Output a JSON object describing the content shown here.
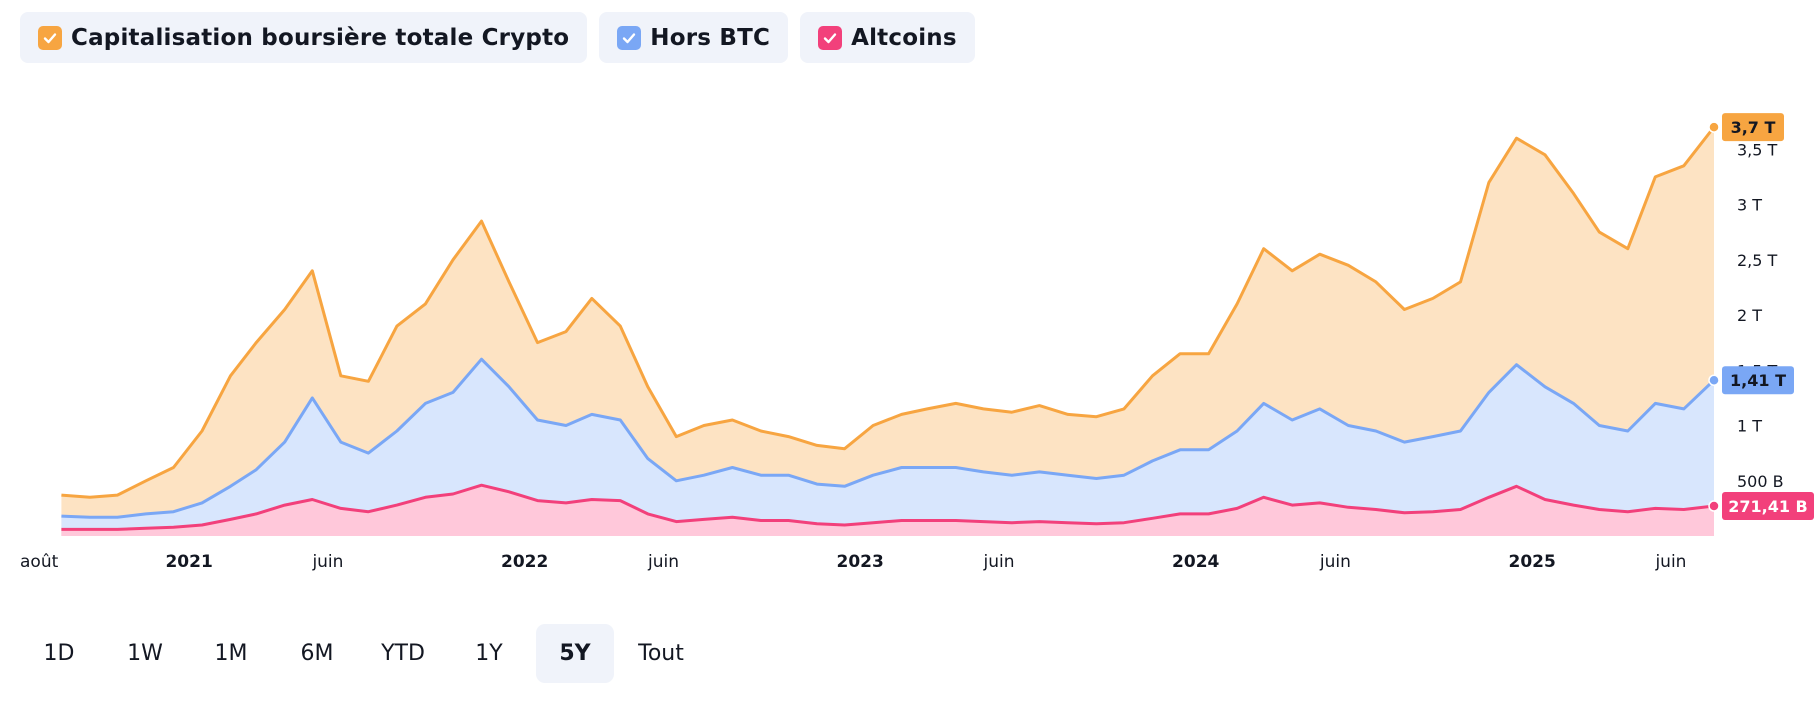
{
  "legend": [
    {
      "label": "Capitalisation boursière totale Crypto",
      "color": "#f7a541"
    },
    {
      "label": "Hors BTC",
      "color": "#7aa7f5"
    },
    {
      "label": "Altcoins",
      "color": "#f2407b"
    }
  ],
  "ranges": {
    "items": [
      "1D",
      "1W",
      "1M",
      "6M",
      "YTD",
      "1Y",
      "5Y",
      "Tout"
    ],
    "active": "5Y"
  },
  "chart_data": {
    "type": "area",
    "x_axis_labels": [
      {
        "label": "août",
        "date": "2020-08",
        "bold": false
      },
      {
        "label": "2021",
        "date": "2021-01",
        "bold": true
      },
      {
        "label": "juin",
        "date": "2021-06",
        "bold": false
      },
      {
        "label": "2022",
        "date": "2022-01",
        "bold": true
      },
      {
        "label": "juin",
        "date": "2022-06",
        "bold": false
      },
      {
        "label": "2023",
        "date": "2023-01",
        "bold": true
      },
      {
        "label": "juin",
        "date": "2023-06",
        "bold": false
      },
      {
        "label": "2024",
        "date": "2024-01",
        "bold": true
      },
      {
        "label": "juin",
        "date": "2024-06",
        "bold": false
      },
      {
        "label": "2025",
        "date": "2025-01",
        "bold": true
      },
      {
        "label": "juin",
        "date": "2025-06",
        "bold": false
      }
    ],
    "y_axis_ticks": [
      {
        "label": "500 B",
        "value": 0.5
      },
      {
        "label": "1 T",
        "value": 1
      },
      {
        "label": "1,5 T",
        "value": 1.5
      },
      {
        "label": "2 T",
        "value": 2
      },
      {
        "label": "2,5 T",
        "value": 2.5
      },
      {
        "label": "3 T",
        "value": 3
      },
      {
        "label": "3,5 T",
        "value": 3.5
      }
    ],
    "y_unit": "T",
    "ylim": [
      0,
      3.85
    ],
    "grid": false,
    "legend_position": "top-left",
    "series": [
      {
        "name": "Capitalisation boursière totale Crypto",
        "color": "#f7a541",
        "fill": "#fde3c3",
        "last_label": "3,7 T",
        "last_value": 3.7,
        "points": [
          [
            "2020-08",
            0.37
          ],
          [
            "2020-09",
            0.35
          ],
          [
            "2020-10",
            0.37
          ],
          [
            "2020-11",
            0.5
          ],
          [
            "2020-12",
            0.62
          ],
          [
            "2021-01",
            0.95
          ],
          [
            "2021-02",
            1.45
          ],
          [
            "2021-03",
            1.75
          ],
          [
            "2021-04",
            2.05
          ],
          [
            "2021-05",
            2.4
          ],
          [
            "2021-06",
            1.45
          ],
          [
            "2021-07",
            1.4
          ],
          [
            "2021-08",
            1.9
          ],
          [
            "2021-09",
            2.1
          ],
          [
            "2021-10",
            2.5
          ],
          [
            "2021-11",
            2.85
          ],
          [
            "2021-12",
            2.3
          ],
          [
            "2022-01",
            1.75
          ],
          [
            "2022-02",
            1.85
          ],
          [
            "2022-03",
            2.15
          ],
          [
            "2022-04",
            1.9
          ],
          [
            "2022-05",
            1.35
          ],
          [
            "2022-06",
            0.9
          ],
          [
            "2022-07",
            1.0
          ],
          [
            "2022-08",
            1.05
          ],
          [
            "2022-09",
            0.95
          ],
          [
            "2022-10",
            0.9
          ],
          [
            "2022-11",
            0.82
          ],
          [
            "2022-12",
            0.79
          ],
          [
            "2023-01",
            1.0
          ],
          [
            "2023-02",
            1.1
          ],
          [
            "2023-03",
            1.15
          ],
          [
            "2023-04",
            1.2
          ],
          [
            "2023-05",
            1.15
          ],
          [
            "2023-06",
            1.12
          ],
          [
            "2023-07",
            1.18
          ],
          [
            "2023-08",
            1.1
          ],
          [
            "2023-09",
            1.08
          ],
          [
            "2023-10",
            1.15
          ],
          [
            "2023-11",
            1.45
          ],
          [
            "2023-12",
            1.65
          ],
          [
            "2024-01",
            1.65
          ],
          [
            "2024-02",
            2.1
          ],
          [
            "2024-03",
            2.6
          ],
          [
            "2024-04",
            2.4
          ],
          [
            "2024-05",
            2.55
          ],
          [
            "2024-06",
            2.45
          ],
          [
            "2024-07",
            2.3
          ],
          [
            "2024-08",
            2.05
          ],
          [
            "2024-09",
            2.15
          ],
          [
            "2024-10",
            2.3
          ],
          [
            "2024-11",
            3.2
          ],
          [
            "2024-12",
            3.6
          ],
          [
            "2025-01",
            3.45
          ],
          [
            "2025-02",
            3.1
          ],
          [
            "2025-03",
            2.75
          ],
          [
            "2025-04",
            2.6
          ],
          [
            "2025-05",
            3.25
          ],
          [
            "2025-06",
            3.35
          ],
          [
            "2025-07",
            3.7
          ]
        ]
      },
      {
        "name": "Hors BTC",
        "color": "#7aa7f5",
        "fill": "#d8e6fd",
        "last_label": "1,41 T",
        "last_value": 1.41,
        "points": [
          [
            "2020-08",
            0.18
          ],
          [
            "2020-09",
            0.17
          ],
          [
            "2020-10",
            0.17
          ],
          [
            "2020-11",
            0.2
          ],
          [
            "2020-12",
            0.22
          ],
          [
            "2021-01",
            0.3
          ],
          [
            "2021-02",
            0.45
          ],
          [
            "2021-03",
            0.6
          ],
          [
            "2021-04",
            0.85
          ],
          [
            "2021-05",
            1.25
          ],
          [
            "2021-06",
            0.85
          ],
          [
            "2021-07",
            0.75
          ],
          [
            "2021-08",
            0.95
          ],
          [
            "2021-09",
            1.2
          ],
          [
            "2021-10",
            1.3
          ],
          [
            "2021-11",
            1.6
          ],
          [
            "2021-12",
            1.35
          ],
          [
            "2022-01",
            1.05
          ],
          [
            "2022-02",
            1.0
          ],
          [
            "2022-03",
            1.1
          ],
          [
            "2022-04",
            1.05
          ],
          [
            "2022-05",
            0.7
          ],
          [
            "2022-06",
            0.5
          ],
          [
            "2022-07",
            0.55
          ],
          [
            "2022-08",
            0.62
          ],
          [
            "2022-09",
            0.55
          ],
          [
            "2022-10",
            0.55
          ],
          [
            "2022-11",
            0.47
          ],
          [
            "2022-12",
            0.45
          ],
          [
            "2023-01",
            0.55
          ],
          [
            "2023-02",
            0.62
          ],
          [
            "2023-03",
            0.62
          ],
          [
            "2023-04",
            0.62
          ],
          [
            "2023-05",
            0.58
          ],
          [
            "2023-06",
            0.55
          ],
          [
            "2023-07",
            0.58
          ],
          [
            "2023-08",
            0.55
          ],
          [
            "2023-09",
            0.52
          ],
          [
            "2023-10",
            0.55
          ],
          [
            "2023-11",
            0.68
          ],
          [
            "2023-12",
            0.78
          ],
          [
            "2024-01",
            0.78
          ],
          [
            "2024-02",
            0.95
          ],
          [
            "2024-03",
            1.2
          ],
          [
            "2024-04",
            1.05
          ],
          [
            "2024-05",
            1.15
          ],
          [
            "2024-06",
            1.0
          ],
          [
            "2024-07",
            0.95
          ],
          [
            "2024-08",
            0.85
          ],
          [
            "2024-09",
            0.9
          ],
          [
            "2024-10",
            0.95
          ],
          [
            "2024-11",
            1.3
          ],
          [
            "2024-12",
            1.55
          ],
          [
            "2025-01",
            1.35
          ],
          [
            "2025-02",
            1.2
          ],
          [
            "2025-03",
            1.0
          ],
          [
            "2025-04",
            0.95
          ],
          [
            "2025-05",
            1.2
          ],
          [
            "2025-06",
            1.15
          ],
          [
            "2025-07",
            1.41
          ]
        ]
      },
      {
        "name": "Altcoins",
        "color": "#f2407b",
        "fill": "#ffc8da",
        "last_label": "271,41 B",
        "last_value": 0.27141,
        "points": [
          [
            "2020-08",
            0.06
          ],
          [
            "2020-09",
            0.06
          ],
          [
            "2020-10",
            0.06
          ],
          [
            "2020-11",
            0.07
          ],
          [
            "2020-12",
            0.08
          ],
          [
            "2021-01",
            0.1
          ],
          [
            "2021-02",
            0.15
          ],
          [
            "2021-03",
            0.2
          ],
          [
            "2021-04",
            0.28
          ],
          [
            "2021-05",
            0.33
          ],
          [
            "2021-06",
            0.25
          ],
          [
            "2021-07",
            0.22
          ],
          [
            "2021-08",
            0.28
          ],
          [
            "2021-09",
            0.35
          ],
          [
            "2021-10",
            0.38
          ],
          [
            "2021-11",
            0.46
          ],
          [
            "2021-12",
            0.4
          ],
          [
            "2022-01",
            0.32
          ],
          [
            "2022-02",
            0.3
          ],
          [
            "2022-03",
            0.33
          ],
          [
            "2022-04",
            0.32
          ],
          [
            "2022-05",
            0.2
          ],
          [
            "2022-06",
            0.13
          ],
          [
            "2022-07",
            0.15
          ],
          [
            "2022-08",
            0.17
          ],
          [
            "2022-09",
            0.14
          ],
          [
            "2022-10",
            0.14
          ],
          [
            "2022-11",
            0.11
          ],
          [
            "2022-12",
            0.1
          ],
          [
            "2023-01",
            0.12
          ],
          [
            "2023-02",
            0.14
          ],
          [
            "2023-03",
            0.14
          ],
          [
            "2023-04",
            0.14
          ],
          [
            "2023-05",
            0.13
          ],
          [
            "2023-06",
            0.12
          ],
          [
            "2023-07",
            0.13
          ],
          [
            "2023-08",
            0.12
          ],
          [
            "2023-09",
            0.11
          ],
          [
            "2023-10",
            0.12
          ],
          [
            "2023-11",
            0.16
          ],
          [
            "2023-12",
            0.2
          ],
          [
            "2024-01",
            0.2
          ],
          [
            "2024-02",
            0.25
          ],
          [
            "2024-03",
            0.35
          ],
          [
            "2024-04",
            0.28
          ],
          [
            "2024-05",
            0.3
          ],
          [
            "2024-06",
            0.26
          ],
          [
            "2024-07",
            0.24
          ],
          [
            "2024-08",
            0.21
          ],
          [
            "2024-09",
            0.22
          ],
          [
            "2024-10",
            0.24
          ],
          [
            "2024-11",
            0.35
          ],
          [
            "2024-12",
            0.45
          ],
          [
            "2025-01",
            0.33
          ],
          [
            "2025-02",
            0.28
          ],
          [
            "2025-03",
            0.24
          ],
          [
            "2025-04",
            0.22
          ],
          [
            "2025-05",
            0.25
          ],
          [
            "2025-06",
            0.24
          ],
          [
            "2025-07",
            0.27141
          ]
        ]
      }
    ]
  }
}
